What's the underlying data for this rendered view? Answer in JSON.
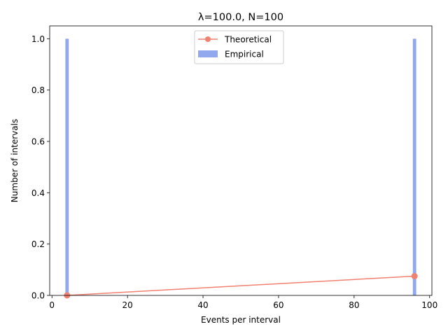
{
  "chart_data": {
    "type": "bar",
    "title": "λ=100.0, N=100",
    "xlabel": "Events per interval",
    "ylabel": "Number of intervals",
    "xlim": [
      -0.6,
      100.6
    ],
    "ylim": [
      0,
      1.05
    ],
    "xticks": [
      0,
      20,
      40,
      60,
      80,
      100
    ],
    "yticks": [
      0.0,
      0.2,
      0.4,
      0.6,
      0.8,
      1.0
    ],
    "xtick_labels": [
      "0",
      "20",
      "40",
      "60",
      "80",
      "100"
    ],
    "ytick_labels": [
      "0.0",
      "0.2",
      "0.4",
      "0.6",
      "0.8",
      "1.0"
    ],
    "legend_position": "top-center",
    "series": [
      {
        "name": "Empirical",
        "kind": "bar",
        "color": "#91a8ee",
        "bar_width": 0.9,
        "x": [
          4,
          96
        ],
        "values": [
          1.0,
          1.0
        ]
      },
      {
        "name": "Theoretical",
        "kind": "line",
        "color": "#f08070",
        "x": [
          4,
          96
        ],
        "values": [
          0.0,
          0.075
        ]
      }
    ]
  }
}
